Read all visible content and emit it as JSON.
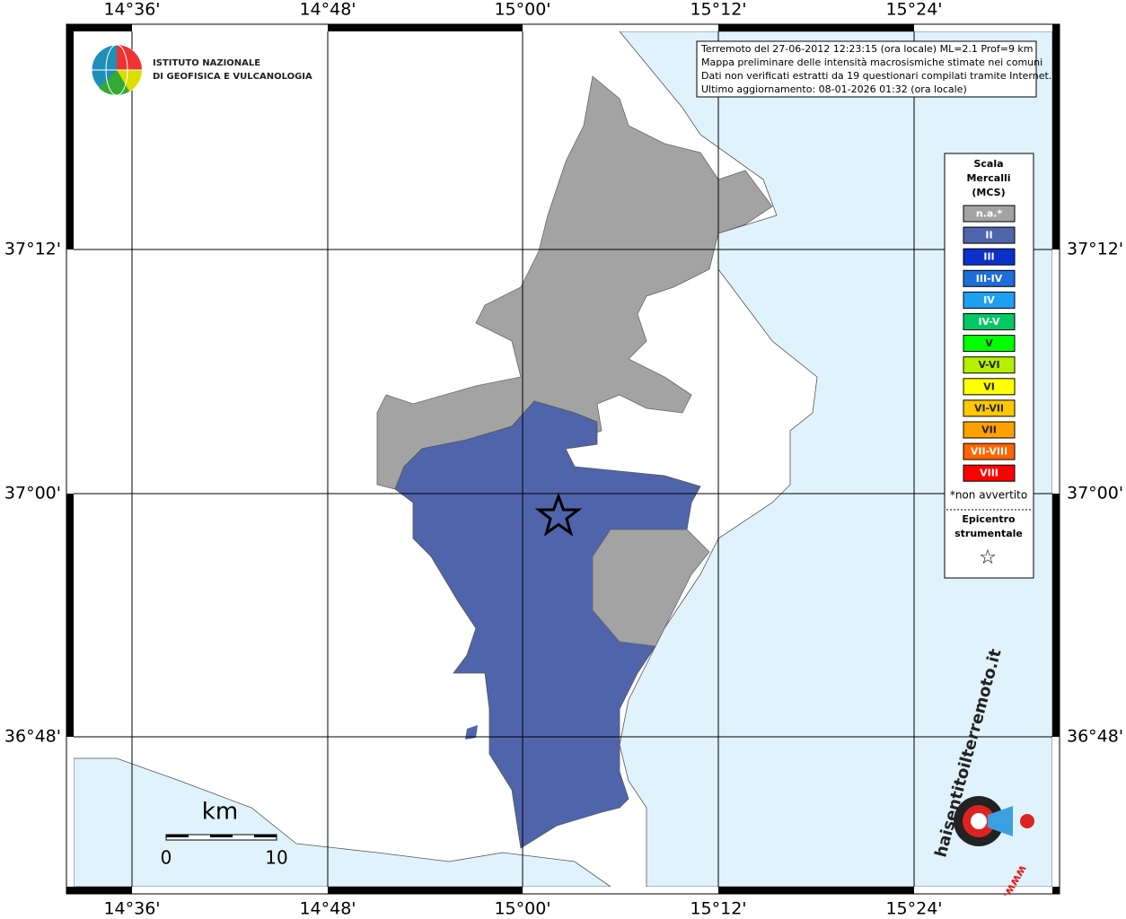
{
  "header": {
    "info_lines": [
      "Terremoto del 27-06-2012 12:23:15 (ora locale) ML=2.1 Prof=9 km",
      "Mappa preliminare delle intensità macrosismiche stimate nei comuni",
      "Dati non verificati estratti da 19 questionari compilati tramite Internet.",
      "Ultimo aggiornamento: 08-01-2026 01:32 (ora locale)"
    ],
    "institute": [
      "ISTITUTO NAZIONALE",
      "DI GEOFISICA E VULCANOLOGIA"
    ]
  },
  "grid": {
    "lon_labels": [
      "14°36'",
      "14°48'",
      "15°00'",
      "15°12'",
      "15°24'"
    ],
    "lat_labels": [
      "37°12'",
      "37°00'",
      "36°48'"
    ]
  },
  "legend": {
    "title": [
      "Scala",
      "Mercalli",
      "(MCS)"
    ],
    "items": [
      {
        "label": "n.a.*",
        "color": "#a3a3a3"
      },
      {
        "label": "II",
        "color": "#5064ab"
      },
      {
        "label": "III",
        "color": "#0a32c8"
      },
      {
        "label": "III-IV",
        "color": "#1e6ed8"
      },
      {
        "label": "IV",
        "color": "#1ea0f0"
      },
      {
        "label": "IV-V",
        "color": "#00c864"
      },
      {
        "label": "V",
        "color": "#00ff00"
      },
      {
        "label": "V-VI",
        "color": "#b4f000"
      },
      {
        "label": "VI",
        "color": "#ffff00"
      },
      {
        "label": "VI-VII",
        "color": "#ffc800"
      },
      {
        "label": "VII",
        "color": "#ffa000"
      },
      {
        "label": "VII-VIII",
        "color": "#ff6400"
      },
      {
        "label": "VIII",
        "color": "#ff0000"
      }
    ],
    "note": "*non avvertito",
    "epicentre": [
      "Epicentro",
      "strumentale"
    ],
    "star": "☆"
  },
  "scale_bar": {
    "unit": "km",
    "start": "0",
    "end": "10"
  },
  "site_logo": {
    "text": "haisentitoilterremoto.it",
    "prefix": "www."
  }
}
